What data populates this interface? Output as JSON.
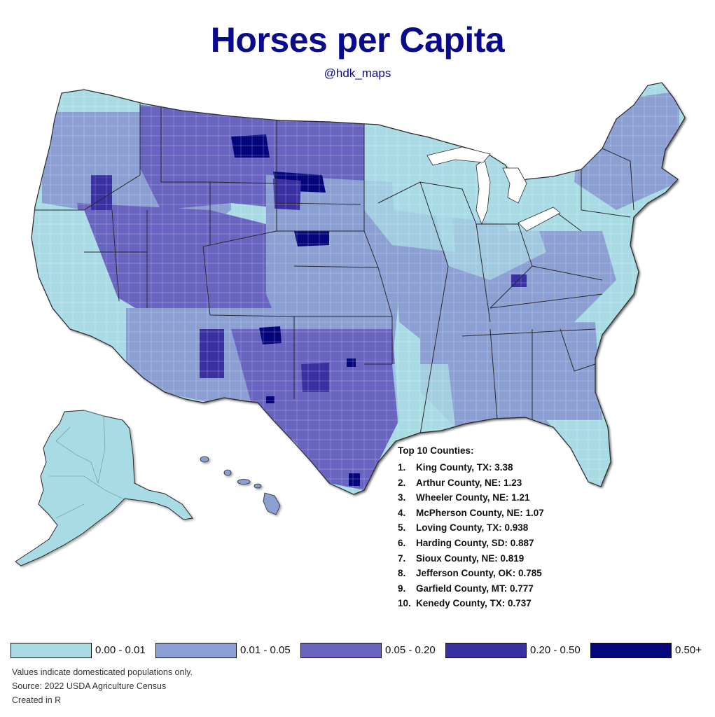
{
  "title": "Horses per Capita",
  "subtitle": "@hdk_maps",
  "top_counties": {
    "heading": "Top 10 Counties:",
    "items": [
      {
        "rank": "1.",
        "name": "King County, TX",
        "value": "3.38"
      },
      {
        "rank": "2.",
        "name": "Arthur County, NE",
        "value": "1.23"
      },
      {
        "rank": "3.",
        "name": "Wheeler County, NE",
        "value": "1.21"
      },
      {
        "rank": "4.",
        "name": "McPherson County, NE",
        "value": "1.07"
      },
      {
        "rank": "5.",
        "name": "Loving County, TX",
        "value": "0.938"
      },
      {
        "rank": "6.",
        "name": "Harding County, SD",
        "value": "0.887"
      },
      {
        "rank": "7.",
        "name": "Sioux County, NE",
        "value": "0.819"
      },
      {
        "rank": "8.",
        "name": "Jefferson County, OK",
        "value": "0.785"
      },
      {
        "rank": "9.",
        "name": "Garfield County, MT",
        "value": "0.777"
      },
      {
        "rank": "10.",
        "name": "Kenedy County, TX",
        "value": "0.737"
      }
    ]
  },
  "legend": [
    {
      "label": "0.00 - 0.01",
      "color": "#a9dbe5"
    },
    {
      "label": "0.01 - 0.05",
      "color": "#8c9fd2"
    },
    {
      "label": "0.05 - 0.20",
      "color": "#6a64c1"
    },
    {
      "label": "0.20 - 0.50",
      "color": "#3b30a2"
    },
    {
      "label": "0.50+",
      "color": "#06067c"
    }
  ],
  "notes": [
    "Values indicate domesticated populations only.",
    "Source: 2022 USDA Agriculture Census",
    "Created in R"
  ],
  "colors": {
    "title": "#0a0a8c",
    "border": "#2a2a2a"
  }
}
